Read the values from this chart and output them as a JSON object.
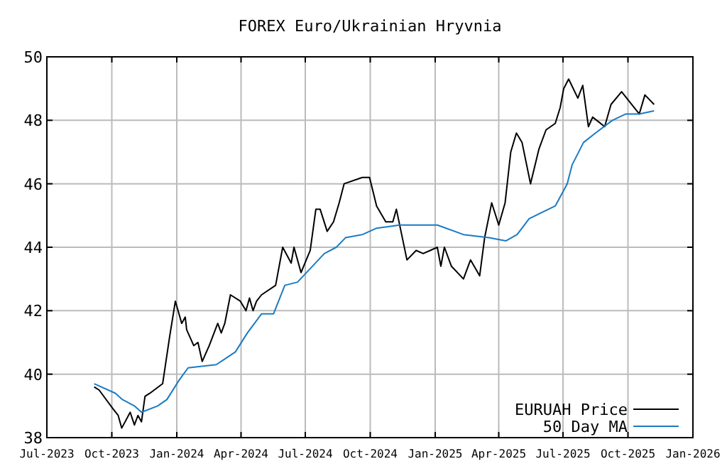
{
  "chart_data": {
    "type": "line",
    "title": "FOREX Euro/Ukrainian Hryvnia",
    "grid": true,
    "legend": "bottom right",
    "marker": "none",
    "line_style": "solid",
    "xlim": [
      "2023-07",
      "2026-01"
    ],
    "ylim": [
      38,
      50
    ],
    "yticks": [
      38,
      40,
      42,
      44,
      46,
      48,
      50
    ],
    "xticks": [
      {
        "value": "2023-07",
        "label": "Jul-2023"
      },
      {
        "value": "2023-10",
        "label": "Oct-2023"
      },
      {
        "value": "2024-01",
        "label": "Jan-2024"
      },
      {
        "value": "2024-04",
        "label": "Apr-2024"
      },
      {
        "value": "2024-07",
        "label": "Jul-2024"
      },
      {
        "value": "2024-10",
        "label": "Oct-2024"
      },
      {
        "value": "2025-01",
        "label": "Jan-2025"
      },
      {
        "value": "2025-04",
        "label": "Apr-2025"
      },
      {
        "value": "2025-07",
        "label": "Jul-2025"
      },
      {
        "value": "2025-10",
        "label": "Oct-2025"
      },
      {
        "value": "2026-01",
        "label": "Jan-2026"
      }
    ],
    "series": [
      {
        "name": "EURUAH Price",
        "color": "#000000",
        "x": [
          "2023-09-06",
          "2023-09-13",
          "2023-10-03",
          "2023-10-10",
          "2023-10-15",
          "2023-10-27",
          "2023-11-02",
          "2023-11-07",
          "2023-11-12",
          "2023-11-17",
          "2023-11-24",
          "2023-12-12",
          "2023-12-22",
          "2023-12-30",
          "2024-01-08",
          "2024-01-13",
          "2024-01-15",
          "2024-01-25",
          "2024-01-31",
          "2024-02-06",
          "2024-02-16",
          "2024-02-28",
          "2024-03-04",
          "2024-03-09",
          "2024-03-17",
          "2024-03-31",
          "2024-04-08",
          "2024-04-13",
          "2024-04-18",
          "2024-04-23",
          "2024-04-30",
          "2024-05-20",
          "2024-05-30",
          "2024-06-11",
          "2024-06-15",
          "2024-06-25",
          "2024-07-08",
          "2024-07-16",
          "2024-07-22",
          "2024-08-01",
          "2024-08-10",
          "2024-08-18",
          "2024-08-25",
          "2024-09-20",
          "2024-09-30",
          "2024-10-10",
          "2024-10-23",
          "2024-11-02",
          "2024-11-07",
          "2024-11-22",
          "2024-12-05",
          "2024-12-15",
          "2024-12-25",
          "2025-01-04",
          "2025-01-09",
          "2025-01-14",
          "2025-01-24",
          "2025-02-10",
          "2025-02-20",
          "2025-03-05",
          "2025-03-12",
          "2025-03-22",
          "2025-04-01",
          "2025-04-10",
          "2025-04-18",
          "2025-04-26",
          "2025-05-04",
          "2025-05-16",
          "2025-05-28",
          "2025-06-07",
          "2025-06-20",
          "2025-06-27",
          "2025-07-02",
          "2025-07-09",
          "2025-07-22",
          "2025-07-29",
          "2025-08-06",
          "2025-08-12",
          "2025-08-29",
          "2025-09-07",
          "2025-09-22",
          "2025-10-17",
          "2025-10-25",
          "2025-11-07"
        ],
        "values": [
          39.6,
          39.5,
          38.9,
          38.7,
          38.3,
          38.8,
          38.4,
          38.7,
          38.5,
          39.3,
          39.4,
          39.7,
          41.2,
          42.3,
          41.6,
          41.8,
          41.4,
          40.9,
          41.0,
          40.4,
          40.9,
          41.6,
          41.3,
          41.6,
          42.5,
          42.3,
          42.0,
          42.4,
          42.0,
          42.3,
          42.5,
          42.8,
          44.0,
          43.5,
          44.0,
          43.2,
          43.9,
          45.2,
          45.2,
          44.5,
          44.8,
          45.4,
          46.0,
          46.2,
          46.2,
          45.3,
          44.8,
          44.8,
          45.2,
          43.6,
          43.9,
          43.8,
          43.9,
          44.0,
          43.4,
          44.0,
          43.4,
          43.0,
          43.6,
          43.1,
          44.3,
          45.4,
          44.7,
          45.4,
          47.0,
          47.6,
          47.3,
          46.0,
          47.1,
          47.7,
          47.9,
          48.4,
          49.0,
          49.3,
          48.7,
          49.1,
          47.8,
          48.1,
          47.8,
          48.5,
          48.9,
          48.2,
          48.8,
          48.5
        ]
      },
      {
        "name": "50 Day MA",
        "color": "#1a7bc4",
        "x": [
          "2023-09-06",
          "2023-10-06",
          "2023-10-16",
          "2023-11-02",
          "2023-11-12",
          "2023-12-05",
          "2023-12-18",
          "2024-01-04",
          "2024-01-17",
          "2024-02-26",
          "2024-03-24",
          "2024-04-10",
          "2024-04-30",
          "2024-05-17",
          "2024-06-02",
          "2024-06-20",
          "2024-07-28",
          "2024-08-14",
          "2024-08-27",
          "2024-09-20",
          "2024-10-10",
          "2024-11-12",
          "2025-01-04",
          "2025-02-10",
          "2025-03-18",
          "2025-04-11",
          "2025-04-27",
          "2025-05-14",
          "2025-06-20",
          "2025-07-07",
          "2025-07-14",
          "2025-07-30",
          "2025-08-16",
          "2025-09-09",
          "2025-09-28",
          "2025-10-17",
          "2025-11-07"
        ],
        "values": [
          39.7,
          39.4,
          39.2,
          39.0,
          38.8,
          39.0,
          39.2,
          39.8,
          40.2,
          40.3,
          40.7,
          41.3,
          41.9,
          41.9,
          42.8,
          42.9,
          43.8,
          44.0,
          44.3,
          44.4,
          44.6,
          44.7,
          44.7,
          44.4,
          44.3,
          44.2,
          44.4,
          44.9,
          45.3,
          46.0,
          46.6,
          47.3,
          47.6,
          48.0,
          48.2,
          48.2,
          48.3
        ]
      }
    ]
  }
}
